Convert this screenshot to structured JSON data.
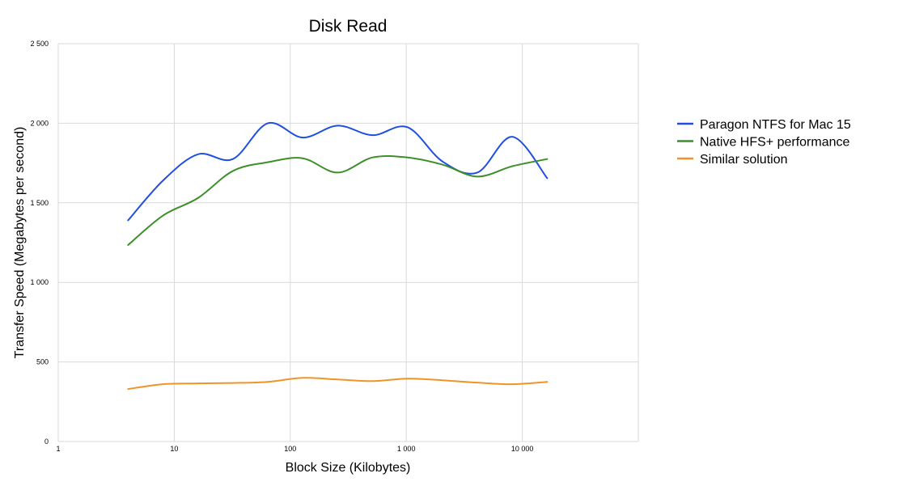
{
  "chart_data": {
    "type": "line",
    "title": "Disk Read",
    "xlabel": "Block Size (Kilobytes)",
    "ylabel": "Transfer Speed (Megabytes per second)",
    "x_scale": "log",
    "xlim": [
      1,
      100000
    ],
    "ylim": [
      0,
      2500
    ],
    "x_ticks": [
      1,
      10,
      100,
      1000,
      10000
    ],
    "x_tick_labels": [
      "1",
      "10",
      "100",
      "1 000",
      "10 000"
    ],
    "y_ticks": [
      0,
      500,
      1000,
      1500,
      2000,
      2500
    ],
    "y_tick_labels": [
      "0",
      "500",
      "1 000",
      "1 500",
      "2 000",
      "2 500"
    ],
    "grid": true,
    "legend_position": "right",
    "series": [
      {
        "name": "Paragon NTFS for Mac 15",
        "color": "#1f4fe0",
        "x": [
          4,
          8,
          16,
          32,
          64,
          128,
          256,
          512,
          1024,
          2048,
          4096,
          8192,
          16384
        ],
        "y": [
          1390,
          1640,
          1805,
          1775,
          2000,
          1910,
          1985,
          1925,
          1975,
          1760,
          1690,
          1915,
          1655
        ]
      },
      {
        "name": "Native HFS+ performance",
        "color": "#3d8f2a",
        "x": [
          4,
          8,
          16,
          32,
          64,
          128,
          256,
          512,
          1024,
          2048,
          4096,
          8192,
          16384
        ],
        "y": [
          1235,
          1420,
          1530,
          1700,
          1755,
          1780,
          1690,
          1785,
          1785,
          1740,
          1665,
          1730,
          1775
        ]
      },
      {
        "name": "Similar solution",
        "color": "#f0932b",
        "x": [
          4,
          8,
          16,
          32,
          64,
          128,
          256,
          512,
          1024,
          2048,
          4096,
          8192,
          16384
        ],
        "y": [
          330,
          360,
          365,
          368,
          375,
          400,
          390,
          380,
          395,
          385,
          370,
          360,
          375
        ]
      }
    ]
  }
}
